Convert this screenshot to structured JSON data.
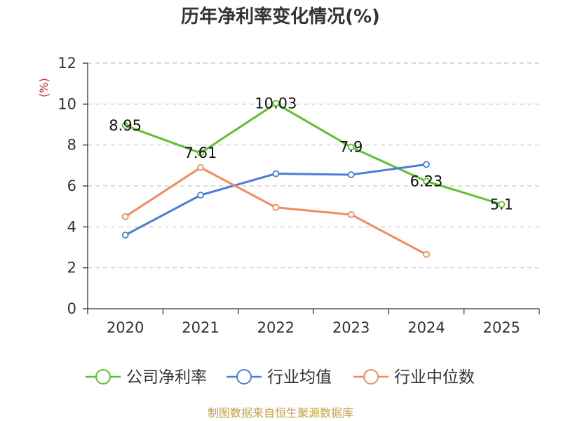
{
  "chart_data": {
    "type": "line",
    "title": "历年净利率变化情况(%)",
    "ylabel": "(%)",
    "xlabel": "",
    "categories": [
      "2020",
      "2021",
      "2022",
      "2023",
      "2024",
      "2025"
    ],
    "ylim": [
      0,
      12
    ],
    "yticks": [
      0,
      2,
      4,
      6,
      8,
      10,
      12
    ],
    "grid": true,
    "legend_position": "bottom",
    "series": [
      {
        "name": "公司净利率",
        "color": "#5ec12e",
        "values": [
          8.95,
          7.61,
          10.03,
          7.9,
          6.23,
          5.1
        ],
        "labels": [
          "8.95",
          "7.61",
          "10.03",
          "7.9",
          "6.23",
          "5.1"
        ]
      },
      {
        "name": "行业均值",
        "color": "#4a7fd9",
        "values": [
          3.6,
          5.55,
          6.6,
          6.55,
          7.05,
          null
        ]
      },
      {
        "name": "行业中位数",
        "color": "#f28c5c",
        "values": [
          4.5,
          6.9,
          4.95,
          4.6,
          2.65,
          null
        ]
      }
    ],
    "ylabel_color": "#e02020"
  },
  "footer": {
    "source": "制图数据来自恒生聚源数据库",
    "source_color": "#c8a040"
  }
}
